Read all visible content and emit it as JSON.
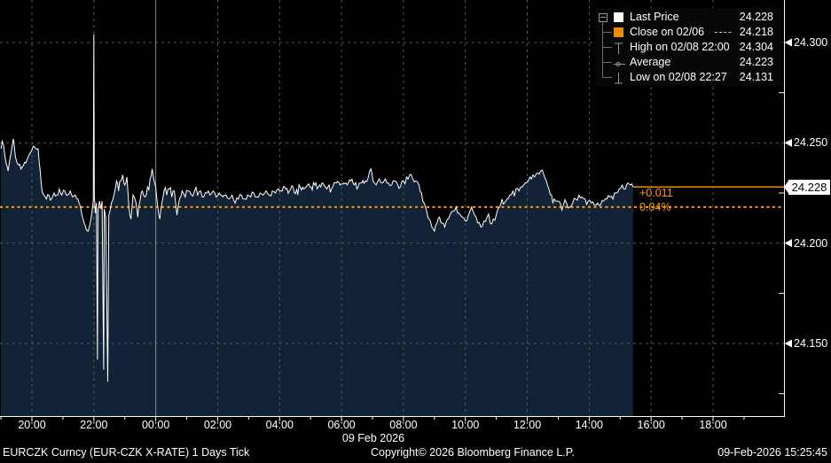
{
  "legend": {
    "items": [
      {
        "label": "Last Price",
        "value": "24.228",
        "swatch": "square-white"
      },
      {
        "label": "Close on 02/06",
        "value": "24.218",
        "dash": "----",
        "swatch": "square-orange"
      },
      {
        "label": "High on 02/08 22:00",
        "value": "24.304",
        "swatch": "high-marker"
      },
      {
        "label": "Average",
        "value": "24.223",
        "swatch": "average-marker"
      },
      {
        "label": "Low on 02/08 22:27",
        "value": "24.131",
        "swatch": "low-marker"
      }
    ]
  },
  "chart_data": {
    "type": "line",
    "title": "EURCZK Curncy (EUR-CZK X-RATE) 1 Days Tick",
    "x_axis": {
      "date_label": "09 Feb 2026",
      "tick_labels": [
        "20:00",
        "22:00",
        "00:00",
        "02:00",
        "04:00",
        "06:00",
        "08:00",
        "10:00",
        "12:00",
        "14:00",
        "16:00",
        "18:00"
      ],
      "tick_minutes": [
        60,
        180,
        300,
        420,
        540,
        660,
        780,
        900,
        1020,
        1140,
        1260,
        1380
      ],
      "solid_grid_minute": 300,
      "start_minute_origin": "19:00 on 08 Feb"
    },
    "y_axis": {
      "ticks": [
        24.3,
        24.25,
        24.2,
        24.15
      ],
      "tick_labels": [
        "24.300",
        "24.250",
        "24.200",
        "24.150"
      ],
      "minor_ticks": [
        24.275,
        24.225,
        24.175,
        24.125
      ],
      "range": [
        24.114,
        24.321
      ]
    },
    "markers": {
      "last_price": 24.228,
      "last_price_label": "24.228",
      "prev_close": 24.218,
      "high": {
        "value": 24.304,
        "time": "02/08 22:00",
        "minute": 180
      },
      "low": {
        "value": 24.131,
        "time": "02/08 22:27",
        "minute": 207
      },
      "average": 24.223
    },
    "annotations": {
      "net_change": "+0.011",
      "pct_change": "0.04%"
    },
    "colors": {
      "accent_orange": "#ff9900",
      "area_fill": "#122338",
      "price_line": "#ffffff",
      "grid": "#585858",
      "day_boundary": "#8c8c8c",
      "axis": "#ffffff"
    },
    "series": {
      "name": "Last Price",
      "points": [
        [
          0,
          24.247
        ],
        [
          5,
          24.249
        ],
        [
          10,
          24.24
        ],
        [
          14,
          24.236
        ],
        [
          19,
          24.244
        ],
        [
          24,
          24.252
        ],
        [
          28,
          24.243
        ],
        [
          34,
          24.239
        ],
        [
          41,
          24.238
        ],
        [
          48,
          24.24
        ],
        [
          57,
          24.245
        ],
        [
          65,
          24.248
        ],
        [
          72,
          24.247
        ],
        [
          76,
          24.236
        ],
        [
          79,
          24.227
        ],
        [
          83,
          24.224
        ],
        [
          88,
          24.222
        ],
        [
          93,
          24.224
        ],
        [
          98,
          24.222
        ],
        [
          103,
          24.225
        ],
        [
          108,
          24.224
        ],
        [
          113,
          24.227
        ],
        [
          118,
          24.224
        ],
        [
          124,
          24.226
        ],
        [
          129,
          24.224
        ],
        [
          134,
          24.226
        ],
        [
          139,
          24.223
        ],
        [
          144,
          24.224
        ],
        [
          149,
          24.222
        ],
        [
          153,
          24.219
        ],
        [
          157,
          24.214
        ],
        [
          161,
          24.21
        ],
        [
          165,
          24.207
        ],
        [
          169,
          24.206
        ],
        [
          172,
          24.209
        ],
        [
          175,
          24.213
        ],
        [
          177,
          24.217
        ],
        [
          179,
          24.221
        ],
        [
          180,
          24.304
        ],
        [
          181,
          24.223
        ],
        [
          183,
          24.215
        ],
        [
          185,
          24.22
        ],
        [
          187,
          24.142
        ],
        [
          188,
          24.216
        ],
        [
          191,
          24.221
        ],
        [
          194,
          24.217
        ],
        [
          196,
          24.221
        ],
        [
          199,
          24.137
        ],
        [
          200,
          24.217
        ],
        [
          203,
          24.213
        ],
        [
          207,
          24.131
        ],
        [
          209,
          24.214
        ],
        [
          214,
          24.22
        ],
        [
          219,
          24.224
        ],
        [
          224,
          24.231
        ],
        [
          228,
          24.226
        ],
        [
          232,
          24.231
        ],
        [
          236,
          24.234
        ],
        [
          240,
          24.229
        ],
        [
          244,
          24.233
        ],
        [
          248,
          24.218
        ],
        [
          252,
          24.212
        ],
        [
          256,
          24.224
        ],
        [
          261,
          24.221
        ],
        [
          265,
          24.213
        ],
        [
          270,
          24.222
        ],
        [
          274,
          24.226
        ],
        [
          279,
          24.223
        ],
        [
          284,
          24.228
        ],
        [
          289,
          24.232
        ],
        [
          293,
          24.237
        ],
        [
          296,
          24.232
        ],
        [
          300,
          24.228
        ],
        [
          304,
          24.218
        ],
        [
          308,
          24.212
        ],
        [
          312,
          24.22
        ],
        [
          316,
          24.226
        ],
        [
          321,
          24.224
        ],
        [
          326,
          24.227
        ],
        [
          331,
          24.223
        ],
        [
          336,
          24.226
        ],
        [
          341,
          24.214
        ],
        [
          346,
          24.222
        ],
        [
          351,
          24.226
        ],
        [
          357,
          24.223
        ],
        [
          363,
          24.226
        ],
        [
          369,
          24.224
        ],
        [
          375,
          24.226
        ],
        [
          381,
          24.224
        ],
        [
          387,
          24.226
        ],
        [
          393,
          24.223
        ],
        [
          399,
          24.225
        ],
        [
          405,
          24.224
        ],
        [
          411,
          24.226
        ],
        [
          417,
          24.223
        ],
        [
          423,
          24.225
        ],
        [
          430,
          24.223
        ],
        [
          436,
          24.224
        ],
        [
          442,
          24.222
        ],
        [
          448,
          24.224
        ],
        [
          454,
          24.22
        ],
        [
          460,
          24.222
        ],
        [
          466,
          24.224
        ],
        [
          472,
          24.222
        ],
        [
          478,
          24.224
        ],
        [
          484,
          24.223
        ],
        [
          490,
          24.225
        ],
        [
          496,
          24.223
        ],
        [
          502,
          24.225
        ],
        [
          508,
          24.224
        ],
        [
          514,
          24.226
        ],
        [
          520,
          24.224
        ],
        [
          526,
          24.226
        ],
        [
          532,
          24.225
        ],
        [
          538,
          24.227
        ],
        [
          545,
          24.226
        ],
        [
          552,
          24.227
        ],
        [
          559,
          24.226
        ],
        [
          566,
          24.228
        ],
        [
          573,
          24.227
        ],
        [
          580,
          24.228
        ],
        [
          587,
          24.227
        ],
        [
          594,
          24.229
        ],
        [
          601,
          24.228
        ],
        [
          608,
          24.229
        ],
        [
          615,
          24.228
        ],
        [
          622,
          24.23
        ],
        [
          629,
          24.228
        ],
        [
          636,
          24.229
        ],
        [
          643,
          24.228
        ],
        [
          650,
          24.23
        ],
        [
          657,
          24.229
        ],
        [
          664,
          24.23
        ],
        [
          671,
          24.229
        ],
        [
          678,
          24.231
        ],
        [
          685,
          24.229
        ],
        [
          692,
          24.228
        ],
        [
          699,
          24.23
        ],
        [
          706,
          24.231
        ],
        [
          712,
          24.233
        ],
        [
          717,
          24.237
        ],
        [
          721,
          24.231
        ],
        [
          727,
          24.229
        ],
        [
          733,
          24.232
        ],
        [
          739,
          24.23
        ],
        [
          745,
          24.232
        ],
        [
          751,
          24.23
        ],
        [
          757,
          24.229
        ],
        [
          763,
          24.231
        ],
        [
          769,
          24.229
        ],
        [
          774,
          24.228
        ],
        [
          780,
          24.231
        ],
        [
          786,
          24.233
        ],
        [
          792,
          24.234
        ],
        [
          798,
          24.232
        ],
        [
          804,
          24.231
        ],
        [
          810,
          24.229
        ],
        [
          815,
          24.225
        ],
        [
          820,
          24.22
        ],
        [
          825,
          24.216
        ],
        [
          830,
          24.212
        ],
        [
          835,
          24.208
        ],
        [
          840,
          24.206
        ],
        [
          845,
          24.21
        ],
        [
          850,
          24.213
        ],
        [
          855,
          24.21
        ],
        [
          860,
          24.208
        ],
        [
          865,
          24.212
        ],
        [
          870,
          24.214
        ],
        [
          876,
          24.216
        ],
        [
          882,
          24.218
        ],
        [
          888,
          24.215
        ],
        [
          894,
          24.213
        ],
        [
          900,
          24.211
        ],
        [
          906,
          24.214
        ],
        [
          912,
          24.218
        ],
        [
          918,
          24.214
        ],
        [
          924,
          24.21
        ],
        [
          930,
          24.208
        ],
        [
          936,
          24.211
        ],
        [
          942,
          24.213
        ],
        [
          948,
          24.21
        ],
        [
          954,
          24.212
        ],
        [
          960,
          24.214
        ],
        [
          966,
          24.218
        ],
        [
          971,
          24.222
        ],
        [
          976,
          24.22
        ],
        [
          981,
          24.222
        ],
        [
          986,
          24.224
        ],
        [
          992,
          24.226
        ],
        [
          998,
          24.227
        ],
        [
          1004,
          24.226
        ],
        [
          1010,
          24.228
        ],
        [
          1016,
          24.23
        ],
        [
          1022,
          24.231
        ],
        [
          1028,
          24.232
        ],
        [
          1034,
          24.233
        ],
        [
          1040,
          24.235
        ],
        [
          1046,
          24.236
        ],
        [
          1052,
          24.234
        ],
        [
          1057,
          24.231
        ],
        [
          1062,
          24.227
        ],
        [
          1067,
          24.224
        ],
        [
          1072,
          24.222
        ],
        [
          1078,
          24.221
        ],
        [
          1084,
          24.22
        ],
        [
          1090,
          24.219
        ],
        [
          1096,
          24.22
        ],
        [
          1102,
          24.218
        ],
        [
          1108,
          24.22
        ],
        [
          1114,
          24.222
        ],
        [
          1120,
          24.224
        ],
        [
          1126,
          24.223
        ],
        [
          1132,
          24.222
        ],
        [
          1138,
          24.221
        ],
        [
          1144,
          24.22
        ],
        [
          1150,
          24.219
        ],
        [
          1156,
          24.22
        ],
        [
          1162,
          24.219
        ],
        [
          1168,
          24.221
        ],
        [
          1174,
          24.222
        ],
        [
          1180,
          24.223
        ],
        [
          1186,
          24.222
        ],
        [
          1192,
          24.225
        ],
        [
          1198,
          24.227
        ],
        [
          1204,
          24.229
        ],
        [
          1210,
          24.227
        ],
        [
          1215,
          24.23
        ],
        [
          1220,
          24.229
        ],
        [
          1225,
          24.228
        ]
      ]
    }
  },
  "footer": {
    "left": "EURCZK Curncy (EUR-CZK X-RATE) 1 Days Tick",
    "center": "Copyright© 2026 Bloomberg Finance L.P.",
    "right": "09-Feb-2026 15:25:45"
  }
}
